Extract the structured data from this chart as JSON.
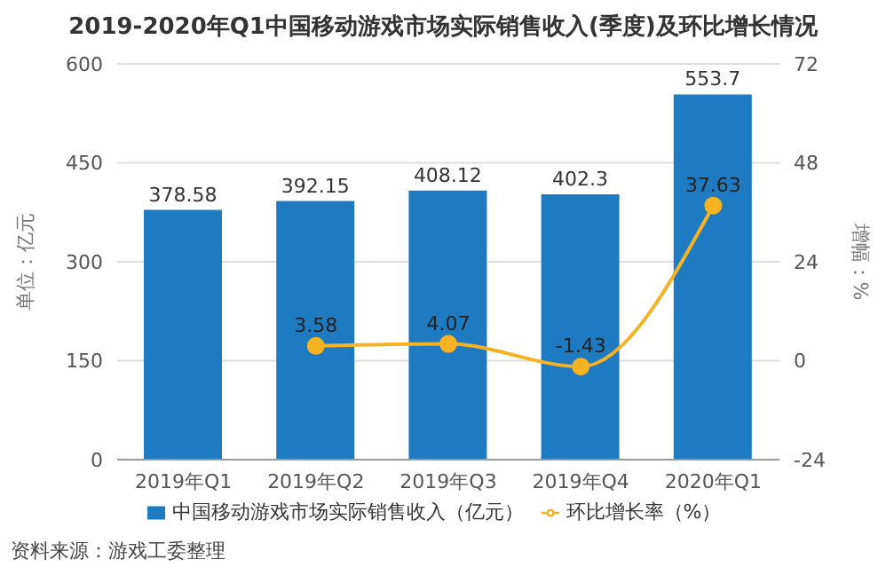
{
  "chart_data": {
    "type": "bar",
    "title": "2019-2020年Q1中国移动游戏市场实际销售收入(季度)及环比增长情况",
    "categories": [
      "2019年Q1",
      "2019年Q2",
      "2019年Q3",
      "2019年Q4",
      "2020年Q1"
    ],
    "series": [
      {
        "name": "中国移动游戏市场实际销售收入（亿元）",
        "color": "#1f7bc1",
        "values": [
          378.58,
          392.15,
          408.12,
          402.3,
          553.7
        ]
      },
      {
        "name": "环比增长率（%）",
        "type": "line",
        "axis": "y2",
        "color": "#f5b323",
        "values": [
          null,
          3.58,
          4.07,
          -1.43,
          37.63
        ]
      }
    ],
    "ylabel": "单位：亿元",
    "y2label": "增幅：%",
    "ylim": [
      0,
      600
    ],
    "yticks": [
      0,
      150,
      300,
      450,
      600
    ],
    "y2lim": [
      -24,
      72
    ],
    "y2ticks": [
      -24,
      0,
      24,
      48,
      72
    ],
    "grid": "y",
    "legend": "bottom",
    "marker": "circle",
    "data_labels": true,
    "annotations": [
      "资料来源：游戏工委整理"
    ]
  }
}
